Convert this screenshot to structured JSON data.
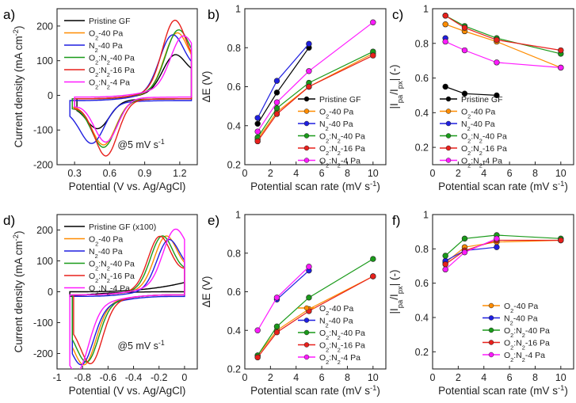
{
  "chart_data": [
    {
      "panel": "a)",
      "type": "line",
      "xlabel": "Potential (V vs. Ag/AgCl)",
      "ylabel": "Current density (mA cm⁻²)",
      "xlim": [
        0.15,
        1.35
      ],
      "ylim": [
        -200,
        250
      ],
      "xticks": [
        0.3,
        0.6,
        0.9,
        1.2
      ],
      "yticks": [
        -200,
        -100,
        0,
        100,
        200
      ],
      "annotation": "@5 mV s⁻¹",
      "legend": [
        "Pristine GF",
        "O₂-40 Pa",
        "N₂-40 Pa",
        "O₂:N₂-40 Pa",
        "O₂:N₂-16 Pa",
        "O₂:N₂-4 Pa"
      ],
      "series": [
        {
          "name": "Pristine GF",
          "color": "#000000",
          "cv": {
            "xL": 0.32,
            "xR": 1.3,
            "base": -10,
            "amp": 60,
            "amp2": 20,
            "pa": 90,
            "pax": 1.15,
            "pc": -75,
            "pcx": 0.5
          }
        },
        {
          "name": "O₂-40 Pa",
          "color": "#ff8c00",
          "cv": {
            "xL": 0.28,
            "xR": 1.3,
            "base": -10,
            "amp": 60,
            "amp2": 20,
            "pa": 150,
            "pax": 1.17,
            "pc": -125,
            "pcx": 0.55
          }
        },
        {
          "name": "N₂-40 Pa",
          "color": "#1f1fe0",
          "cv": {
            "xL": 0.26,
            "xR": 1.3,
            "base": -15,
            "amp": 75,
            "amp2": 25,
            "pa": 145,
            "pax": 1.13,
            "pc": -110,
            "pcx": 0.45
          }
        },
        {
          "name": "O₂:N₂-40 Pa",
          "color": "#1a9a1a",
          "cv": {
            "xL": 0.28,
            "xR": 1.3,
            "base": -10,
            "amp": 70,
            "amp2": 25,
            "pa": 150,
            "pax": 1.18,
            "pc": -130,
            "pcx": 0.55
          }
        },
        {
          "name": "O₂:N₂-16 Pa",
          "color": "#e8201c",
          "cv": {
            "xL": 0.3,
            "xR": 1.3,
            "base": -10,
            "amp": 75,
            "amp2": 25,
            "pa": 180,
            "pax": 1.15,
            "pc": -155,
            "pcx": 0.57
          }
        },
        {
          "name": "O₂:N₂-4 Pa",
          "color": "#ff1aff",
          "cv": {
            "xL": 0.3,
            "xR": 1.3,
            "base": -5,
            "amp": 65,
            "amp2": 25,
            "pa": 125,
            "pax": 1.22,
            "pc": -120,
            "pcx": 0.57
          }
        }
      ]
    },
    {
      "panel": "b)",
      "type": "line",
      "xlabel": "Potential scan rate (mV s⁻¹)",
      "ylabel": "ΔE (V)",
      "xlim": [
        0,
        11
      ],
      "ylim": [
        0.2,
        1.0
      ],
      "xticks": [
        0,
        2,
        4,
        6,
        8,
        10
      ],
      "yticks": [
        0.2,
        0.4,
        0.6,
        0.8,
        1.0
      ],
      "legend": [
        "Pristine GF",
        "O₂-40 Pa",
        "N₂-40 Pa",
        "O₂:N₂-40 Pa",
        "O₂:N₂-16 Pa",
        "O₂:N₂-4 Pa"
      ],
      "series": [
        {
          "name": "Pristine GF",
          "color": "#000000",
          "x": [
            1,
            2.5,
            5
          ],
          "y": [
            0.41,
            0.57,
            0.8
          ]
        },
        {
          "name": "O₂-40 Pa",
          "color": "#ff8c00",
          "x": [
            1,
            2.5,
            5,
            10
          ],
          "y": [
            0.33,
            0.47,
            0.6,
            0.77
          ]
        },
        {
          "name": "N₂-40 Pa",
          "color": "#1f1fe0",
          "x": [
            1,
            2.5,
            5
          ],
          "y": [
            0.44,
            0.63,
            0.82
          ]
        },
        {
          "name": "O₂:N₂-40 Pa",
          "color": "#1a9a1a",
          "x": [
            1,
            2.5,
            5,
            10
          ],
          "y": [
            0.34,
            0.49,
            0.62,
            0.78
          ]
        },
        {
          "name": "O₂:N₂-16 Pa",
          "color": "#e8201c",
          "x": [
            1,
            2.5,
            5,
            10
          ],
          "y": [
            0.32,
            0.46,
            0.6,
            0.76
          ]
        },
        {
          "name": "O₂:N₂-4 Pa",
          "color": "#ff1aff",
          "x": [
            1,
            2.5,
            5,
            10
          ],
          "y": [
            0.37,
            0.52,
            0.68,
            0.93
          ]
        }
      ]
    },
    {
      "panel": "c)",
      "type": "line",
      "xlabel": "Potential scan rate (mV s⁻¹)",
      "ylabel": "|Iₚₐ/Iₚₓ| (-)",
      "xlim": [
        0,
        11
      ],
      "ylim": [
        0.1,
        1.0
      ],
      "xticks": [
        0,
        2,
        4,
        6,
        8,
        10
      ],
      "yticks": [
        0.2,
        0.4,
        0.6,
        0.8,
        1.0
      ],
      "legend": [
        "Pristine GF",
        "O₂-40 Pa",
        "N₂-40 Pa",
        "O₂:N₂-40 Pa",
        "O₂:N₂-16 Pa",
        "O₂:N₂-4 Pa"
      ],
      "series": [
        {
          "name": "Pristine GF",
          "color": "#000000",
          "x": [
            1,
            2.5,
            5
          ],
          "y": [
            0.55,
            0.51,
            0.5
          ]
        },
        {
          "name": "O₂-40 Pa",
          "color": "#ff8c00",
          "x": [
            1,
            2.5,
            5,
            10
          ],
          "y": [
            0.91,
            0.87,
            0.81,
            0.66
          ]
        },
        {
          "name": "N₂-40 Pa",
          "color": "#1f1fe0",
          "x": [
            1
          ],
          "y": [
            0.83
          ]
        },
        {
          "name": "O₂:N₂-40 Pa",
          "color": "#1a9a1a",
          "x": [
            1,
            2.5,
            5,
            10
          ],
          "y": [
            0.96,
            0.9,
            0.83,
            0.74
          ]
        },
        {
          "name": "O₂:N₂-16 Pa",
          "color": "#e8201c",
          "x": [
            1,
            2.5,
            5,
            10
          ],
          "y": [
            0.96,
            0.89,
            0.82,
            0.76
          ]
        },
        {
          "name": "O₂:N₂-4 Pa",
          "color": "#ff1aff",
          "x": [
            1,
            2.5,
            5,
            10
          ],
          "y": [
            0.81,
            0.76,
            0.69,
            0.66
          ]
        }
      ]
    },
    {
      "panel": "d)",
      "type": "line",
      "xlabel": "Potential (V vs. Ag/AgCl)",
      "ylabel": "Current density (mA cm⁻²)",
      "xlim": [
        -1.0,
        0.1
      ],
      "ylim": [
        -250,
        250
      ],
      "xticks": [
        -1.0,
        -0.8,
        -0.6,
        -0.4,
        -0.2,
        0.0
      ],
      "yticks": [
        -200,
        -100,
        0,
        100,
        200
      ],
      "annotation": "@5 mV s⁻¹",
      "legend": [
        "Pristine GF (x100)",
        "O₂-40 Pa",
        "N₂-40 Pa",
        "O₂:N₂-40 Pa",
        "O₂:N₂-16 Pa",
        "O₂:N₂-4 Pa"
      ],
      "series": [
        {
          "name": "Pristine GF (x100)",
          "color": "#000000",
          "cv": {
            "xL": -0.9,
            "xR": 0.0,
            "base": 0,
            "amp": 30,
            "amp2": 15,
            "pa": 0,
            "pax": -0.3,
            "pc": 0,
            "pcx": -0.6
          }
        },
        {
          "name": "O₂-40 Pa",
          "color": "#ff8c00",
          "cv": {
            "xL": -0.88,
            "xR": 0.0,
            "base": -10,
            "amp": 70,
            "amp2": 80,
            "pa": 150,
            "pax": -0.15,
            "pc": -170,
            "pcx": -0.78
          }
        },
        {
          "name": "N₂-40 Pa",
          "color": "#1f1fe0",
          "cv": {
            "xL": -0.88,
            "xR": 0.0,
            "base": -15,
            "amp": 70,
            "amp2": 80,
            "pa": 140,
            "pax": -0.13,
            "pc": -160,
            "pcx": -0.8
          }
        },
        {
          "name": "O₂:N₂-40 Pa",
          "color": "#1a9a1a",
          "cv": {
            "xL": -0.88,
            "xR": 0.0,
            "base": -10,
            "amp": 70,
            "amp2": 80,
            "pa": 155,
            "pax": -0.18,
            "pc": -165,
            "pcx": -0.76
          }
        },
        {
          "name": "O₂:N₂-16 Pa",
          "color": "#e8201c",
          "cv": {
            "xL": -0.87,
            "xR": 0.0,
            "base": -10,
            "amp": 75,
            "amp2": 80,
            "pa": 155,
            "pax": -0.2,
            "pc": -175,
            "pcx": -0.73
          }
        },
        {
          "name": "O₂:N₂-4 Pa",
          "color": "#ff1aff",
          "cv": {
            "xL": -0.9,
            "xR": 0.0,
            "base": -10,
            "amp": 75,
            "amp2": 80,
            "pa": 155,
            "pax": -0.08,
            "pc": -185,
            "pcx": -0.84
          }
        }
      ]
    },
    {
      "panel": "e)",
      "type": "line",
      "xlabel": "Potential scan rate (mV s⁻¹)",
      "ylabel": "ΔE (V)",
      "xlim": [
        0,
        11
      ],
      "ylim": [
        0.2,
        1.0
      ],
      "xticks": [
        0,
        2,
        4,
        6,
        8,
        10
      ],
      "yticks": [
        0.2,
        0.4,
        0.6,
        0.8,
        1.0
      ],
      "legend": [
        "O₂-40 Pa",
        "N₂-40 Pa",
        "O₂:N₂-40 Pa",
        "O₂:N₂-16 Pa",
        "O₂:N₂-4 Pa"
      ],
      "series": [
        {
          "name": "O₂-40 Pa",
          "color": "#ff8c00",
          "x": [
            1,
            2.5,
            5,
            10
          ],
          "y": [
            0.27,
            0.4,
            0.51,
            0.68
          ]
        },
        {
          "name": "N₂-40 Pa",
          "color": "#1f1fe0",
          "x": [
            2.5,
            5
          ],
          "y": [
            0.56,
            0.71
          ]
        },
        {
          "name": "O₂:N₂-40 Pa",
          "color": "#1a9a1a",
          "x": [
            1,
            2.5,
            5,
            10
          ],
          "y": [
            0.27,
            0.42,
            0.57,
            0.77
          ]
        },
        {
          "name": "O₂:N₂-16 Pa",
          "color": "#e8201c",
          "x": [
            1,
            2.5,
            5,
            10
          ],
          "y": [
            0.26,
            0.39,
            0.5,
            0.68
          ]
        },
        {
          "name": "O₂:N₂-4 Pa",
          "color": "#ff1aff",
          "x": [
            1,
            2.5,
            5
          ],
          "y": [
            0.4,
            0.57,
            0.73
          ]
        }
      ]
    },
    {
      "panel": "f)",
      "type": "line",
      "xlabel": "Potential scan rate (mV s⁻¹)",
      "ylabel": "|Iₚₐ/Iₚₓ| (-)",
      "xlim": [
        0,
        11
      ],
      "ylim": [
        0.1,
        1.0
      ],
      "xticks": [
        0,
        2,
        4,
        6,
        8,
        10
      ],
      "yticks": [
        0.2,
        0.4,
        0.6,
        0.8,
        1.0
      ],
      "legend": [
        "O₂-40 Pa",
        "N₂-40 Pa",
        "O₂:N₂-40 Pa",
        "O₂:N₂-16 Pa",
        "O₂:N₂-4 Pa"
      ],
      "series": [
        {
          "name": "O₂-40 Pa",
          "color": "#ff8c00",
          "x": [
            1,
            2.5,
            5,
            10
          ],
          "y": [
            0.72,
            0.81,
            0.84,
            0.85
          ]
        },
        {
          "name": "N₂-40 Pa",
          "color": "#1f1fe0",
          "x": [
            1,
            2.5,
            5
          ],
          "y": [
            0.73,
            0.79,
            0.81
          ]
        },
        {
          "name": "O₂:N₂-40 Pa",
          "color": "#1a9a1a",
          "x": [
            1,
            2.5,
            5,
            10
          ],
          "y": [
            0.76,
            0.86,
            0.88,
            0.86
          ]
        },
        {
          "name": "O₂:N₂-16 Pa",
          "color": "#e8201c",
          "x": [
            1,
            2.5,
            5,
            10
          ],
          "y": [
            0.71,
            0.79,
            0.85,
            0.85
          ]
        },
        {
          "name": "O₂:N₂-4 Pa",
          "color": "#ff1aff",
          "x": [
            1,
            2.5,
            5
          ],
          "y": [
            0.68,
            0.78,
            0.86
          ]
        }
      ]
    }
  ]
}
